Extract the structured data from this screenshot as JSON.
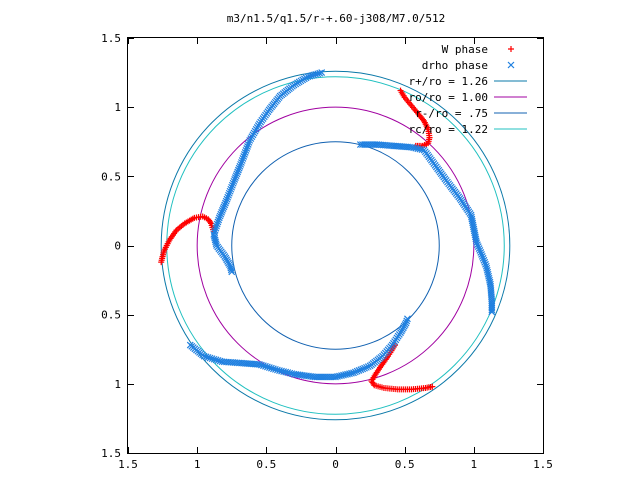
{
  "chart_data": {
    "type": "scatter",
    "title": "m3/n1.5/q1.5/r-+.60-j308/M7.0/512",
    "xlim": [
      -1.5,
      1.5
    ],
    "ylim": [
      -1.5,
      1.5
    ],
    "xticks": [
      -1.5,
      -1,
      -0.5,
      0,
      0.5,
      1,
      1.5
    ],
    "yticks": [
      -1.5,
      -1,
      -0.5,
      0,
      0.5,
      1,
      1.5
    ],
    "xtick_labels": [
      "1.5",
      "1",
      "0.5",
      "0",
      "0.5",
      "1",
      "1.5"
    ],
    "ytick_labels": [
      "1.5",
      "1",
      "0.5",
      "0",
      "0.5",
      "1",
      "1.5"
    ],
    "grid": false,
    "legend_position": "top-right",
    "circles": [
      {
        "name": "r+/ro = 1.26",
        "radius": 1.26,
        "color": "#0a78a8"
      },
      {
        "name": "ro/ro = 1.00",
        "radius": 1.0,
        "color": "#a000a0"
      },
      {
        "name": "r-/ro = .75",
        "radius": 0.75,
        "color": "#1060b0"
      },
      {
        "name": "rc/ro = 1.22",
        "radius": 1.22,
        "color": "#20c0c0"
      }
    ],
    "series": [
      {
        "name": "W phase",
        "marker": "plus",
        "color": "#ff0000",
        "arms": [
          [
            [
              0.47,
              1.12
            ],
            [
              0.5,
              1.07
            ],
            [
              0.55,
              1.01
            ],
            [
              0.6,
              0.95
            ],
            [
              0.64,
              0.9
            ],
            [
              0.67,
              0.84
            ],
            [
              0.68,
              0.78
            ],
            [
              0.67,
              0.74
            ],
            [
              0.63,
              0.72
            ],
            [
              0.58,
              0.72
            ]
          ],
          [
            [
              -1.26,
              -0.12
            ],
            [
              -1.24,
              -0.04
            ],
            [
              -1.2,
              0.04
            ],
            [
              -1.15,
              0.11
            ],
            [
              -1.09,
              0.16
            ],
            [
              -1.02,
              0.2
            ],
            [
              -0.96,
              0.21
            ],
            [
              -0.92,
              0.19
            ],
            [
              -0.9,
              0.16
            ],
            [
              -0.88,
              0.1
            ]
          ],
          [
            [
              0.43,
              -0.72
            ],
            [
              0.38,
              -0.8
            ],
            [
              0.33,
              -0.87
            ],
            [
              0.29,
              -0.93
            ],
            [
              0.26,
              -0.98
            ],
            [
              0.28,
              -1.01
            ],
            [
              0.35,
              -1.03
            ],
            [
              0.45,
              -1.04
            ],
            [
              0.55,
              -1.04
            ],
            [
              0.65,
              -1.03
            ],
            [
              0.7,
              -1.02
            ]
          ]
        ]
      },
      {
        "name": "drho phase",
        "marker": "cross",
        "color": "#2080e0",
        "arms": [
          [
            [
              -0.1,
              1.25
            ],
            [
              -0.2,
              1.22
            ],
            [
              -0.3,
              1.16
            ],
            [
              -0.4,
              1.08
            ],
            [
              -0.48,
              0.98
            ],
            [
              -0.55,
              0.88
            ],
            [
              -0.62,
              0.76
            ],
            [
              -0.68,
              0.6
            ],
            [
              -0.74,
              0.45
            ],
            [
              -0.79,
              0.32
            ],
            [
              -0.84,
              0.2
            ],
            [
              -0.88,
              0.08
            ],
            [
              -0.86,
              0.0
            ],
            [
              -0.8,
              -0.08
            ],
            [
              -0.76,
              -0.15
            ],
            [
              -0.75,
              -0.19
            ]
          ],
          [
            [
              0.18,
              0.73
            ],
            [
              0.3,
              0.73
            ],
            [
              0.42,
              0.72
            ],
            [
              0.55,
              0.71
            ],
            [
              0.64,
              0.69
            ],
            [
              0.72,
              0.58
            ],
            [
              0.8,
              0.47
            ],
            [
              0.9,
              0.34
            ],
            [
              0.98,
              0.22
            ],
            [
              1.0,
              0.12
            ],
            [
              1.02,
              0.02
            ],
            [
              1.05,
              -0.05
            ],
            [
              1.09,
              -0.15
            ],
            [
              1.12,
              -0.28
            ],
            [
              1.13,
              -0.4
            ],
            [
              1.13,
              -0.48
            ]
          ],
          [
            [
              -1.05,
              -0.72
            ],
            [
              -0.95,
              -0.8
            ],
            [
              -0.82,
              -0.84
            ],
            [
              -0.68,
              -0.85
            ],
            [
              -0.55,
              -0.86
            ],
            [
              -0.42,
              -0.9
            ],
            [
              -0.3,
              -0.93
            ],
            [
              -0.15,
              -0.95
            ],
            [
              0.0,
              -0.95
            ],
            [
              0.13,
              -0.92
            ],
            [
              0.25,
              -0.87
            ],
            [
              0.34,
              -0.8
            ],
            [
              0.41,
              -0.72
            ],
            [
              0.47,
              -0.63
            ],
            [
              0.51,
              -0.56
            ],
            [
              0.52,
              -0.53
            ]
          ]
        ]
      }
    ]
  }
}
